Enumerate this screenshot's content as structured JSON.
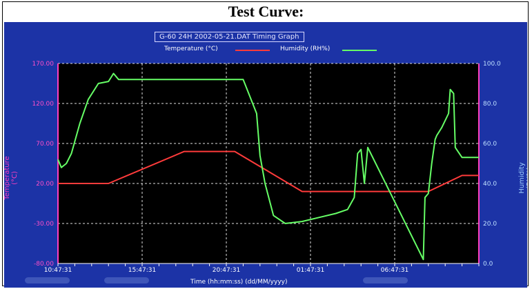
{
  "page": {
    "title": "Test Curve:"
  },
  "chart_data": {
    "type": "line",
    "title": "G-60 24H 2002-05-21.DAT Timing Graph",
    "ylabel": "Temperature (°C)",
    "y2label": "Humidity (RH%)",
    "xlabel": "Time (hh:mm:ss) (dd/MM/yyyy)",
    "legend": [
      "Temperature (°C)",
      "Humidity (RH%)"
    ],
    "x_ticks": [
      "10:47:31",
      "15:47:31",
      "20:47:31",
      "01:47:31",
      "06:47:31"
    ],
    "y_ticks": [
      "170.00",
      "120.00",
      "70.00",
      "20.00",
      "-30.00",
      "-80.00"
    ],
    "y2_ticks": [
      "100.0",
      "80.0",
      "60.0",
      "40.0",
      "20.0",
      "0.0"
    ],
    "ylim": [
      -80,
      170
    ],
    "y2lim": [
      0,
      100
    ],
    "x_hours": [
      0,
      25
    ],
    "grid": true,
    "colors": {
      "temperature": "#ff3b3b",
      "humidity": "#66ff66",
      "panel": "#1c33a6",
      "plot": "#000000"
    },
    "series": [
      {
        "name": "Temperature (°C)",
        "axis": "left",
        "x": [
          0,
          3,
          7.5,
          10.5,
          14.5,
          22,
          24,
          25
        ],
        "y": [
          20,
          20,
          60,
          60,
          10,
          10,
          30,
          30
        ]
      },
      {
        "name": "Humidity (RH%)",
        "axis": "right",
        "x": [
          0,
          0.2,
          0.5,
          0.8,
          1.3,
          1.8,
          2.4,
          3.0,
          3.3,
          3.6,
          4.2,
          6.0,
          9.0,
          11.0,
          11.8,
          12.0,
          12.3,
          12.8,
          13.5,
          14.5,
          15.5,
          16.5,
          17.2,
          17.6,
          17.8,
          18.0,
          18.2,
          18.4,
          21.7,
          21.8,
          22.0,
          22.2,
          22.4,
          22.5,
          22.8,
          23.2,
          23.3,
          23.5,
          23.6,
          24.0,
          25.0
        ],
        "y": [
          52,
          48,
          50,
          55,
          70,
          82,
          90,
          91,
          95,
          92,
          92,
          92,
          92,
          92,
          75,
          54,
          40,
          24,
          20,
          21,
          23,
          25,
          27,
          33,
          55,
          57,
          40,
          58,
          2,
          33,
          35,
          50,
          62,
          64,
          68,
          75,
          87,
          85,
          58,
          53,
          53
        ]
      }
    ]
  }
}
